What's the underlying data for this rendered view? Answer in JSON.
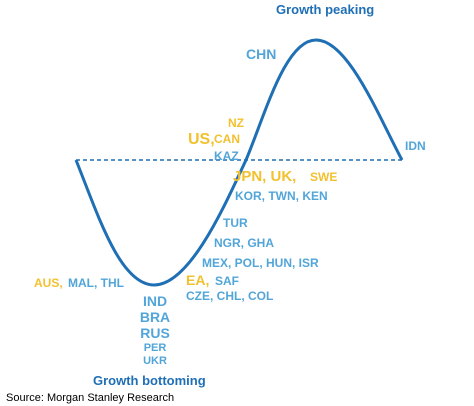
{
  "headings": {
    "peak": "Growth peaking",
    "trough": "Growth bottoming"
  },
  "source": "Source: Morgan Stanley Research",
  "colors": {
    "curve": "#1f6fb5",
    "heading": "#1f6fb5",
    "country_blue": "#52a5d8",
    "country_gold": "#f2c12e",
    "source_text": "#000000"
  },
  "labels": {
    "chn": "CHN",
    "nz": "NZ",
    "us": "US,",
    "can": "CAN",
    "kaz": "KAZ",
    "idn": "IDN",
    "jpn_uk": "JPN, UK,",
    "swe": "SWE",
    "kor_twn_ken": "KOR, TWN, KEN",
    "tur": "TUR",
    "ngr_gha": "NGR, GHA",
    "mex_pol_hun_isr": "MEX, POL, HUN, ISR",
    "aus": "AUS,",
    "mal_thl": "MAL, THL",
    "ea": "EA,",
    "saf": "SAF",
    "cze_chl_col": "CZE, CHL, COL",
    "ind": "IND",
    "bra": "BRA",
    "rus": "RUS",
    "per": "PER",
    "ukr": "UKR"
  }
}
